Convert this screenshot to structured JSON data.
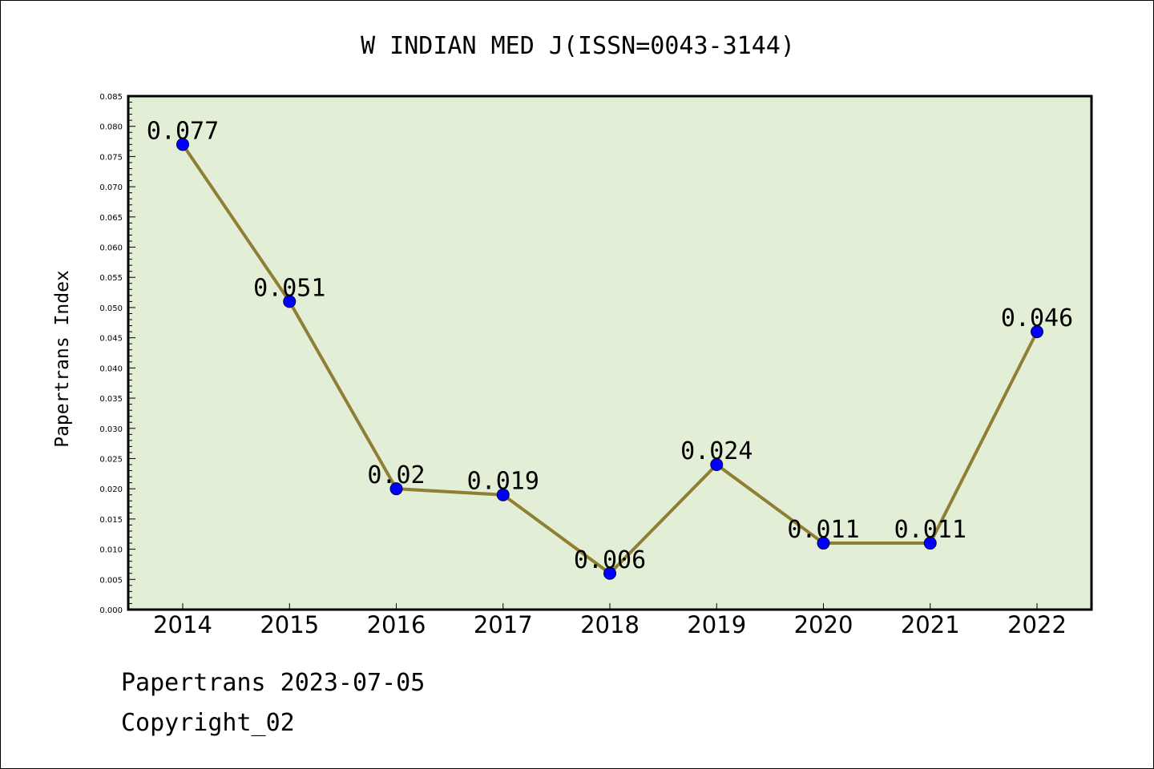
{
  "chart_data": {
    "type": "line",
    "title": "W INDIAN MED J(ISSN=0043-3144)",
    "xlabel": "",
    "ylabel": "Papertrans Index",
    "categories": [
      "2014",
      "2015",
      "2016",
      "2017",
      "2018",
      "2019",
      "2020",
      "2021",
      "2022"
    ],
    "values": [
      0.077,
      0.051,
      0.02,
      0.019,
      0.006,
      0.024,
      0.011,
      0.011,
      0.046
    ],
    "data_labels": [
      "0.077",
      "0.051",
      "0.02",
      "0.019",
      "0.006",
      "0.024",
      "0.011",
      "0.011",
      "0.046"
    ],
    "ylim": [
      0,
      0.085
    ],
    "y_ticks": [
      "0.000",
      "0.005",
      "0.010",
      "0.015",
      "0.020",
      "0.025",
      "0.030",
      "0.035",
      "0.040",
      "0.045",
      "0.050",
      "0.055",
      "0.060",
      "0.065",
      "0.070",
      "0.075",
      "0.080",
      "0.085"
    ],
    "grid": false,
    "legend": "none",
    "colors": {
      "plot_background": "#e2efd6",
      "line": "#8f7f35",
      "marker": "#0000ff"
    }
  },
  "footer": {
    "source_line": "Papertrans 2023-07-05",
    "copyright_line": "Copyright_02"
  }
}
